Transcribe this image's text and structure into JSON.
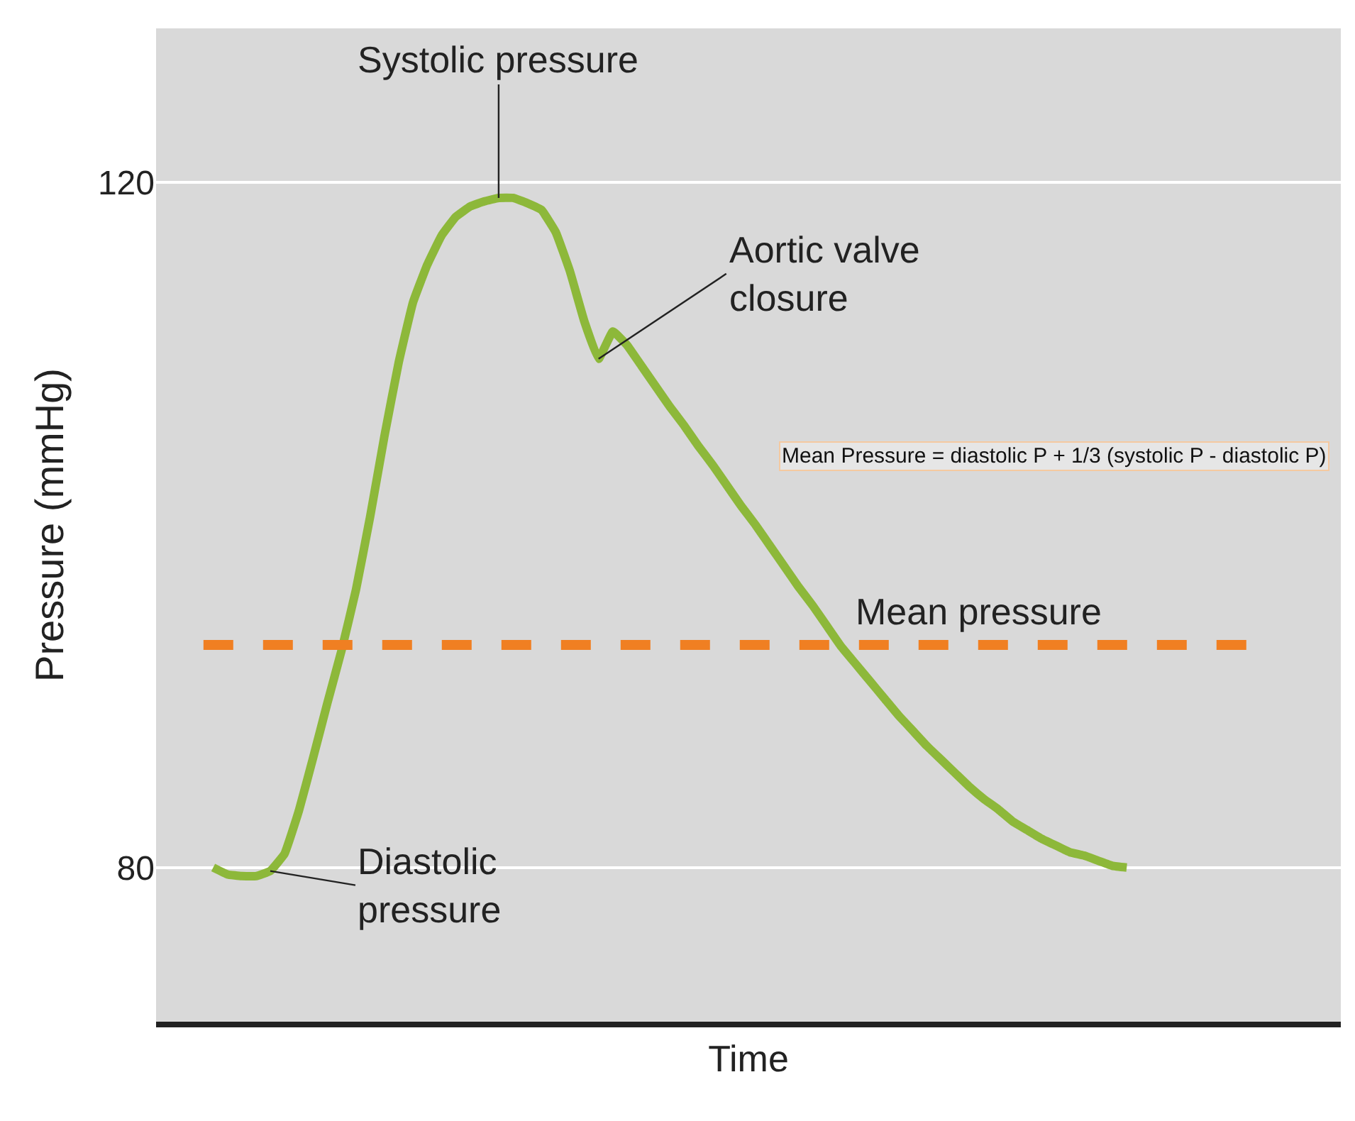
{
  "chart_data": {
    "type": "line",
    "xlabel": "Time",
    "ylabel": "Pressure (mmHg)",
    "categories": [
      null,
      null,
      null,
      null,
      null,
      null,
      null,
      null,
      null,
      null,
      null,
      null,
      null,
      null,
      null,
      null,
      null,
      null,
      null,
      null,
      null,
      null,
      null,
      null,
      null,
      null,
      null,
      null,
      null,
      null,
      null,
      null,
      null,
      null,
      null,
      null,
      null,
      null,
      null,
      null,
      null,
      null,
      null,
      null,
      null,
      null,
      null,
      null,
      null,
      null,
      null,
      null,
      null,
      null,
      null,
      null,
      null,
      null,
      null,
      null,
      null,
      null,
      null,
      null,
      null
    ],
    "series": [
      {
        "color": "#8db83a",
        "values": [
          80.0,
          79.6,
          79.5,
          79.5,
          79.8,
          80.8,
          83.3,
          86.4,
          89.6,
          92.7,
          96.2,
          100.5,
          105.2,
          109.5,
          113.0,
          115.2,
          116.9,
          118.0,
          118.6,
          118.9,
          119.1,
          119.1,
          118.8,
          118.4,
          117.1,
          114.8,
          111.9,
          109.7,
          111.3,
          110.5,
          109.3,
          108.1,
          106.9,
          105.8,
          104.6,
          103.5,
          102.3,
          101.1,
          100.0,
          98.8,
          97.6,
          96.4,
          95.3,
          94.1,
          92.9,
          91.9,
          90.9,
          89.9,
          88.9,
          88.0,
          87.1,
          86.3,
          85.5,
          84.7,
          84.0,
          83.4,
          82.7,
          82.2,
          81.7,
          81.3,
          80.9,
          80.7,
          80.4,
          80.1,
          80.0
        ]
      }
    ],
    "ylim": [
      71,
      129
    ],
    "yticks": [
      80,
      120
    ],
    "grid": "y",
    "marker": "none",
    "line_style": "solid",
    "legend": false,
    "tick_labels": "y",
    "ref_lines": [
      {
        "axis": "y",
        "value": 93,
        "label": "Mean pressure",
        "color": "#f07f22",
        "line_style": "dashed"
      }
    ],
    "annotations": [
      "Systolic pressure",
      "Aortic valve\nclosure",
      "Mean Pressure = diastolic P + 1/3 (systolic P - diastolic P)",
      "Diastolic\npressure"
    ]
  }
}
